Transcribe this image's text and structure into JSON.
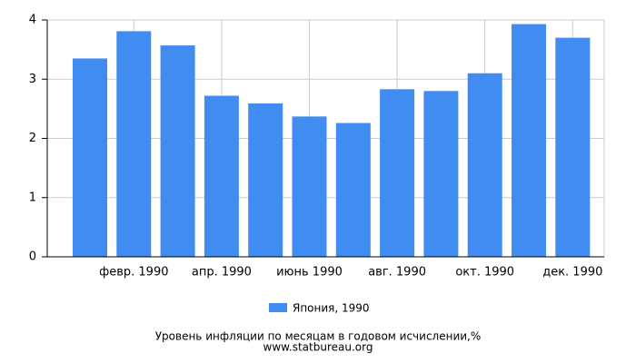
{
  "chart_data": {
    "type": "bar",
    "title": "Уровень инфляции по месяцам в годовом исчислении,%",
    "source": "www.statbureau.org",
    "categories": [
      null,
      "февр. 1990",
      null,
      "апр. 1990",
      null,
      "июнь 1990",
      null,
      "авг. 1990",
      null,
      "окт. 1990",
      null,
      "дек. 1990"
    ],
    "series": [
      {
        "name": "Япония, 1990",
        "color": "#418cf0",
        "values": [
          3.35,
          3.81,
          3.57,
          2.72,
          2.59,
          2.37,
          2.26,
          2.83,
          2.8,
          3.1,
          3.93,
          3.7
        ]
      }
    ],
    "ylim": [
      0,
      4
    ],
    "yticks": [
      0,
      1,
      2,
      3,
      4
    ],
    "grid": true,
    "legend": "bottom"
  }
}
